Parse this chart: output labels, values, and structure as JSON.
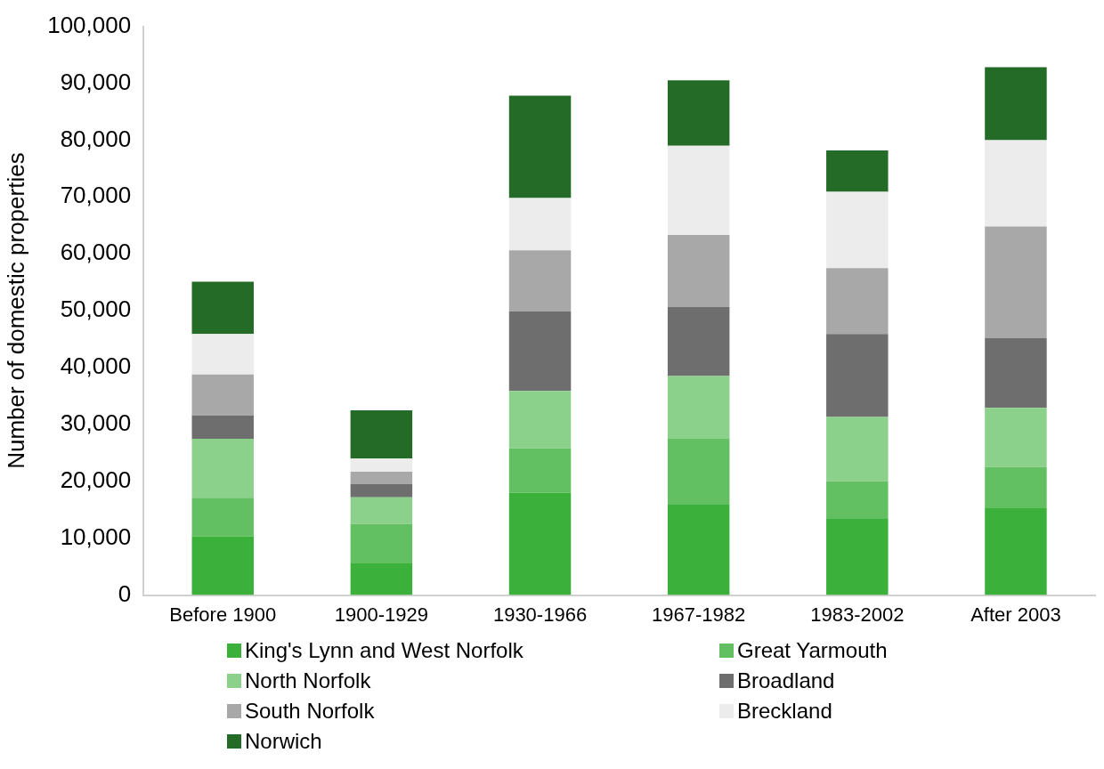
{
  "chart_data": {
    "type": "bar",
    "stacked": true,
    "ylabel": "Number of domestic properties",
    "categories": [
      "Before 1900",
      "1900-1929",
      "1930-1966",
      "1967-1982",
      "1983-2002",
      "After 2003"
    ],
    "series": [
      {
        "name": "King's Lynn and West Norfolk",
        "color": "#3bb03b",
        "values": [
          10300,
          5700,
          18000,
          15900,
          13400,
          15400
        ]
      },
      {
        "name": "Great Yarmouth",
        "color": "#62c063",
        "values": [
          6800,
          6800,
          7800,
          11600,
          6600,
          7100
        ]
      },
      {
        "name": "North Norfolk",
        "color": "#8bd18b",
        "values": [
          10400,
          4700,
          10100,
          11000,
          11300,
          10400
        ]
      },
      {
        "name": "Broadland",
        "color": "#6e6e6e",
        "values": [
          4100,
          2300,
          14000,
          12200,
          14600,
          12300
        ]
      },
      {
        "name": "South Norfolk",
        "color": "#a8a8a8",
        "values": [
          7200,
          2200,
          10700,
          12600,
          11600,
          19600
        ]
      },
      {
        "name": "Breckland",
        "color": "#ececec",
        "values": [
          7100,
          2300,
          9200,
          15700,
          13400,
          15200
        ]
      },
      {
        "name": "Norwich",
        "color": "#236b27",
        "values": [
          9200,
          8500,
          18000,
          11500,
          7300,
          12800
        ]
      }
    ],
    "ylim": [
      0,
      100000
    ],
    "yticks": [
      0,
      {
        "value": 10000,
        "label": "10,000"
      },
      {
        "value": 20000,
        "label": "20,000"
      },
      {
        "value": 30000,
        "label": "30,000"
      },
      {
        "value": 40000,
        "label": "40,000"
      },
      {
        "value": 50000,
        "label": "50,000"
      },
      {
        "value": 60000,
        "label": "60,000"
      },
      {
        "value": 70000,
        "label": "70,000"
      },
      {
        "value": 80000,
        "label": "80,000"
      },
      {
        "value": 90000,
        "label": "90,000"
      },
      {
        "value": 100000,
        "label": "100,000"
      }
    ],
    "grid": false,
    "legend": "bottom"
  }
}
